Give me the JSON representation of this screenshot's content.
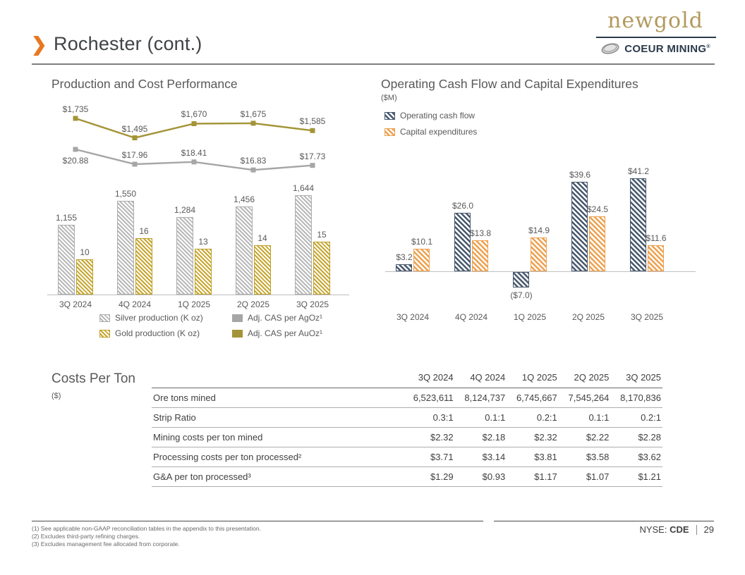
{
  "slide": {
    "title": "Rochester (cont.)",
    "page_number": "29",
    "ticker_label": "NYSE:",
    "ticker": "CDE",
    "logos": {
      "newgold": "newgold",
      "coeur": "COEUR MINING",
      "registered": "®"
    }
  },
  "colors": {
    "accent_orange": "#E87722",
    "operating_cash_flow": "#47586d",
    "capital_expenditures": "#eda14f",
    "silver_bars": "#b8b8b8",
    "gold_bars": "#c7a62e",
    "cas_agoz_line": "#a6a6a6",
    "cas_auoz_line": "#a39437",
    "navy": "#2b3a4a",
    "text_gray": "#595959"
  },
  "chart_data": [
    {
      "type": "bar",
      "title": "Production and Cost Performance",
      "categories": [
        "3Q 2024",
        "4Q 2024",
        "1Q 2025",
        "2Q 2025",
        "3Q 2025"
      ],
      "legend_position": "bottom",
      "axes": "hidden",
      "series": [
        {
          "name": "Silver production (K oz)",
          "type": "bar",
          "values": [
            1155,
            1550,
            1284,
            1456,
            1644
          ],
          "labels": [
            "1,155",
            "1,550",
            "1,284",
            "1,456",
            "1,644"
          ]
        },
        {
          "name": "Gold production (K oz)",
          "type": "bar",
          "values": [
            10,
            16,
            13,
            14,
            15
          ],
          "labels": [
            "10",
            "16",
            "13",
            "14",
            "15"
          ]
        },
        {
          "name": "Adj. CAS per AgOz¹",
          "type": "line",
          "values": [
            20.88,
            17.96,
            18.41,
            16.83,
            17.73
          ],
          "labels": [
            "$20.88",
            "$17.96",
            "$18.41",
            "$16.83",
            "$17.73"
          ]
        },
        {
          "name": "Adj. CAS per AuOz¹",
          "type": "line",
          "values": [
            1735,
            1495,
            1670,
            1675,
            1585
          ],
          "labels": [
            "$1,735",
            "$1,495",
            "$1,670",
            "$1,675",
            "$1,585"
          ]
        }
      ]
    },
    {
      "type": "bar",
      "title": "Operating Cash Flow and Capital Expenditures",
      "subtitle": "($M)",
      "categories": [
        "3Q 2024",
        "4Q 2024",
        "1Q 2025",
        "2Q 2025",
        "3Q 2025"
      ],
      "legend_position": "top-left",
      "axes": "hidden",
      "series": [
        {
          "name": "Operating cash flow",
          "values": [
            3.2,
            26.0,
            -7.0,
            39.6,
            41.2
          ],
          "labels": [
            "$3.2",
            "$26.0",
            "($7.0)",
            "$39.6",
            "$41.2"
          ]
        },
        {
          "name": "Capital expenditures",
          "values": [
            10.1,
            13.8,
            14.9,
            24.5,
            11.6
          ],
          "labels": [
            "$10.1",
            "$13.8",
            "$14.9",
            "$24.5",
            "$11.6"
          ]
        }
      ]
    },
    {
      "type": "table",
      "title": "Costs Per Ton",
      "subtitle": "($)",
      "columns": [
        "3Q 2024",
        "4Q 2024",
        "1Q 2025",
        "2Q 2025",
        "3Q 2025"
      ],
      "rows": [
        {
          "label": "Ore tons mined",
          "values": [
            "6,523,611",
            "8,124,737",
            "6,745,667",
            "7,545,264",
            "8,170,836"
          ]
        },
        {
          "label": "Strip Ratio",
          "values": [
            "0.3:1",
            "0.1:1",
            "0.2:1",
            "0.1:1",
            "0.2:1"
          ]
        },
        {
          "label": "Mining costs per ton mined",
          "values": [
            "$2.32",
            "$2.18",
            "$2.32",
            "$2.22",
            "$2.28"
          ]
        },
        {
          "label": "Processing costs per ton processed²",
          "values": [
            "$3.71",
            "$3.14",
            "$3.81",
            "$3.58",
            "$3.62"
          ]
        },
        {
          "label": "G&A per ton processed³",
          "values": [
            "$1.29",
            "$0.93",
            "$1.17",
            "$1.07",
            "$1.21"
          ]
        }
      ]
    }
  ],
  "footnotes": [
    "(1) See applicable non-GAAP reconciliation tables in the appendix to this presentation.",
    "(2) Excludes third-party refining charges.",
    "(3) Excludes management fee allocated from corporate."
  ]
}
